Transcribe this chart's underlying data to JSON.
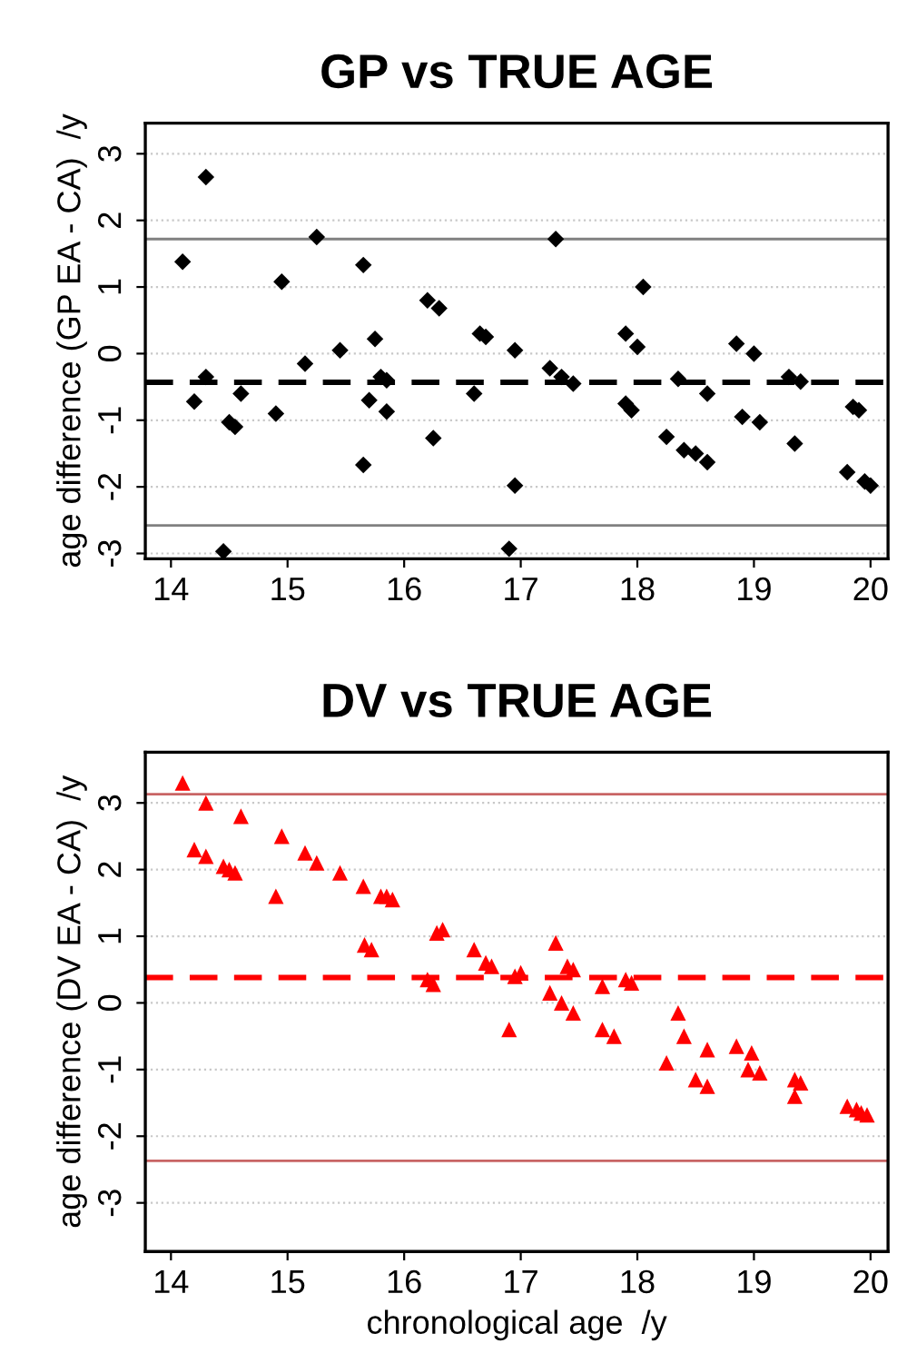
{
  "chart_data": [
    {
      "type": "scatter",
      "title": "GP vs TRUE AGE",
      "ylabel": "age difference (GP EA - CA)  /y",
      "marker": "diamond",
      "grid": "y",
      "xlim": [
        13.78,
        20.15
      ],
      "ylim": [
        -3.08,
        3.46
      ],
      "xticks": [
        14,
        15,
        16,
        17,
        18,
        19,
        20
      ],
      "yticks": [
        {
          "value": -3,
          "label": "-3"
        },
        {
          "value": -2,
          "label": "-2"
        },
        {
          "value": -1,
          "label": "-1"
        },
        0,
        1,
        2,
        3
      ],
      "series": [
        {
          "color": "#000000",
          "x": [
            14.1,
            14.2,
            14.3,
            14.3,
            14.45,
            14.5,
            14.55,
            14.6,
            14.9,
            14.95,
            15.15,
            15.25,
            15.45,
            15.65,
            15.65,
            15.7,
            15.75,
            15.8,
            15.85,
            15.85,
            16.2,
            16.25,
            16.3,
            16.6,
            16.65,
            16.7,
            16.9,
            16.95,
            16.95,
            17.25,
            17.3,
            17.35,
            17.45,
            17.9,
            17.9,
            17.95,
            18.0,
            18.05,
            18.25,
            18.35,
            18.4,
            18.5,
            18.6,
            18.6,
            18.85,
            18.9,
            19.0,
            19.05,
            19.3,
            19.35,
            19.4,
            19.8,
            19.85,
            19.9,
            19.95,
            20.0
          ],
          "values": [
            1.38,
            -0.72,
            2.65,
            -0.35,
            -2.97,
            -1.03,
            -1.1,
            -0.6,
            -0.9,
            1.08,
            -0.15,
            1.75,
            0.05,
            1.33,
            -1.67,
            -0.7,
            0.22,
            -0.35,
            -0.4,
            -0.87,
            0.8,
            -1.27,
            0.68,
            -0.6,
            0.3,
            0.25,
            -2.93,
            0.05,
            -1.98,
            -0.22,
            1.72,
            -0.35,
            -0.45,
            0.3,
            -0.75,
            -0.85,
            0.1,
            1.0,
            -1.25,
            -0.38,
            -1.45,
            -1.5,
            -1.63,
            -0.6,
            0.15,
            -0.95,
            0.0,
            -1.03,
            -0.35,
            -1.35,
            -0.42,
            -1.78,
            -0.8,
            -0.85,
            -1.92,
            -1.98
          ]
        }
      ],
      "ref_lines": [
        {
          "axis": "y",
          "value": 1.72,
          "color": "#808080",
          "line_style": "solid"
        },
        {
          "axis": "y",
          "value": -0.43,
          "color": "#000000",
          "line_style": "dashed"
        },
        {
          "axis": "y",
          "value": -2.58,
          "color": "#808080",
          "line_style": "solid"
        }
      ]
    },
    {
      "type": "scatter",
      "title": "DV vs TRUE AGE",
      "xlabel": "chronological age  /y",
      "ylabel": "age difference (DV EA - CA)  /y",
      "marker": "triangle",
      "grid": "y",
      "xlim": [
        13.78,
        20.15
      ],
      "ylim": [
        -3.73,
        3.76
      ],
      "xticks": [
        14,
        15,
        16,
        17,
        18,
        19,
        20
      ],
      "yticks": [
        {
          "value": -3,
          "label": "-3"
        },
        {
          "value": -2,
          "label": "-2"
        },
        {
          "value": -1,
          "label": "-1"
        },
        0,
        1,
        2,
        3
      ],
      "series": [
        {
          "color": "#ff0000",
          "x": [
            14.1,
            14.2,
            14.3,
            14.3,
            14.45,
            14.5,
            14.55,
            14.6,
            14.9,
            14.95,
            15.15,
            15.25,
            15.45,
            15.65,
            15.66,
            15.72,
            15.8,
            15.85,
            15.9,
            16.2,
            16.25,
            16.28,
            16.33,
            16.6,
            16.7,
            16.75,
            16.9,
            16.95,
            17.0,
            17.25,
            17.3,
            17.35,
            17.4,
            17.45,
            17.45,
            17.7,
            17.7,
            17.8,
            17.9,
            17.95,
            18.25,
            18.35,
            18.4,
            18.5,
            18.6,
            18.6,
            18.85,
            18.95,
            18.98,
            19.05,
            19.35,
            19.35,
            19.4,
            19.8,
            19.88,
            19.92,
            19.97
          ],
          "values": [
            3.3,
            2.3,
            3.0,
            2.2,
            2.05,
            2.0,
            1.95,
            2.8,
            1.6,
            2.5,
            2.25,
            2.1,
            1.95,
            1.75,
            0.87,
            0.8,
            1.6,
            1.6,
            1.55,
            0.35,
            0.28,
            1.05,
            1.1,
            0.8,
            0.6,
            0.55,
            -0.4,
            0.4,
            0.45,
            0.15,
            0.9,
            0.0,
            0.55,
            0.5,
            -0.15,
            0.25,
            -0.4,
            -0.5,
            0.35,
            0.3,
            -0.9,
            -0.15,
            -0.5,
            -1.15,
            -0.7,
            -1.25,
            -0.65,
            -1.0,
            -0.75,
            -1.05,
            -1.15,
            -1.4,
            -1.2,
            -1.55,
            -1.6,
            -1.65,
            -1.68
          ]
        }
      ],
      "ref_lines": [
        {
          "axis": "y",
          "value": 3.13,
          "color": "#c86464",
          "line_style": "solid"
        },
        {
          "axis": "y",
          "value": 0.38,
          "color": "#ff0000",
          "line_style": "dashed"
        },
        {
          "axis": "y",
          "value": -2.37,
          "color": "#c86464",
          "line_style": "solid"
        }
      ]
    }
  ]
}
